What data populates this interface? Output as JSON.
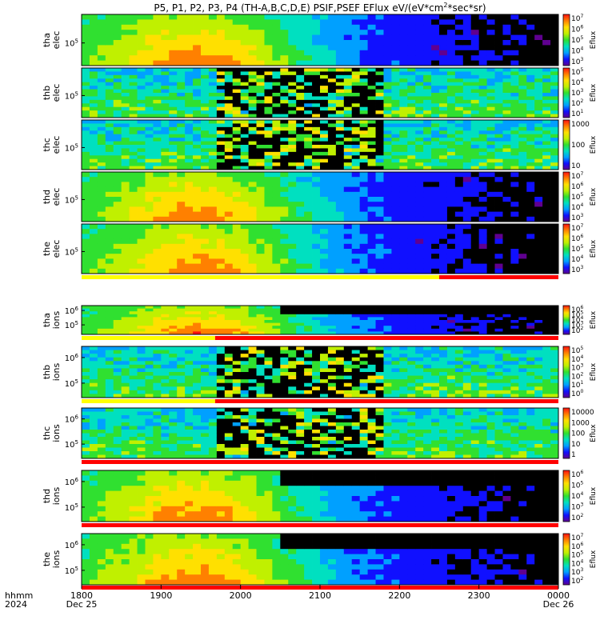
{
  "chart_data": {
    "type": "heatmap",
    "title": "P5, P1, P2, P3, P4 (TH-A,B,C,D,E) PSIF,PSEF EFlux eV/(eV*cm",
    "title_sup": "2",
    "title_tail": "*sec*sr)",
    "x_axis": {
      "corner_labels": [
        "hhmm",
        "2024"
      ],
      "ticks": [
        {
          "label": "1800",
          "date": "Dec 25",
          "hour": 18
        },
        {
          "label": "1900",
          "date": "",
          "hour": 19
        },
        {
          "label": "2000",
          "date": "",
          "hour": 20
        },
        {
          "label": "2100",
          "date": "",
          "hour": 21
        },
        {
          "label": "2200",
          "date": "",
          "hour": 22
        },
        {
          "label": "2300",
          "date": "",
          "hour": 23
        },
        {
          "label": "0000",
          "date": "Dec 26",
          "hour": 24
        }
      ],
      "range_hours": [
        18,
        24
      ]
    },
    "panels": [
      {
        "probe": "tha",
        "species": "elec",
        "ytick": "10",
        "ytick_exp": "5",
        "cbar_label": "Eflux",
        "cbar_ticks": [
          {
            "b": "10",
            "e": "7"
          },
          {
            "b": "10",
            "e": "6"
          },
          {
            "b": "10",
            "e": "5"
          },
          {
            "b": "10",
            "e": "4"
          },
          {
            "b": "10",
            "e": "3"
          }
        ],
        "cbar_range_log": [
          2.6,
          7.2
        ],
        "kind": "smooth"
      },
      {
        "probe": "thb",
        "species": "elec",
        "ytick": "10",
        "ytick_exp": "5",
        "cbar_label": "Eflux",
        "cbar_ticks": [
          {
            "b": "10",
            "e": "5"
          },
          {
            "b": "10",
            "e": "4"
          },
          {
            "b": "10",
            "e": "3"
          },
          {
            "b": "10",
            "e": "2"
          },
          {
            "b": "10",
            "e": "1"
          }
        ],
        "cbar_range_log": [
          0.8,
          5.4
        ],
        "kind": "noisy"
      },
      {
        "probe": "thc",
        "species": "elec",
        "ytick": "10",
        "ytick_exp": "5",
        "cbar_label": "Eflux",
        "cbar_ticks": [
          {
            "b": "1000",
            "e": ""
          },
          {
            "b": "100",
            "e": ""
          },
          {
            "b": "10",
            "e": ""
          }
        ],
        "cbar_range_log": [
          0.8,
          3.4
        ],
        "kind": "noisy"
      },
      {
        "probe": "thd",
        "species": "elec",
        "ytick": "10",
        "ytick_exp": "5",
        "cbar_label": "Eflux",
        "cbar_ticks": [
          {
            "b": "10",
            "e": "7"
          },
          {
            "b": "10",
            "e": "6"
          },
          {
            "b": "10",
            "e": "5"
          },
          {
            "b": "10",
            "e": "4"
          },
          {
            "b": "10",
            "e": "3"
          }
        ],
        "cbar_range_log": [
          2.6,
          7.2
        ],
        "kind": "smooth"
      },
      {
        "probe": "the",
        "species": "elec",
        "ytick": "10",
        "ytick_exp": "5",
        "cbar_label": "Eflux",
        "cbar_ticks": [
          {
            "b": "10",
            "e": "7"
          },
          {
            "b": "10",
            "e": "6"
          },
          {
            "b": "10",
            "e": "5"
          },
          {
            "b": "10",
            "e": "4"
          },
          {
            "b": "10",
            "e": "3"
          }
        ],
        "cbar_range_log": [
          2.6,
          7.2
        ],
        "kind": "smooth"
      },
      {
        "probe": "tha",
        "species": "ions",
        "ytick": "10",
        "ytick_exp": "5",
        "ytick2": "10",
        "ytick2_exp": "6",
        "cbar_label": "Eflux",
        "cbar_ticks": [
          {
            "b": "10",
            "e": "6"
          },
          {
            "b": "10",
            "e": "5"
          },
          {
            "b": "10",
            "e": "4"
          },
          {
            "b": "10",
            "e": "3"
          },
          {
            "b": "10",
            "e": "2"
          }
        ],
        "cbar_range_log": [
          1.6,
          6.4
        ],
        "kind": "smooth"
      },
      {
        "probe": "thb",
        "species": "ions",
        "ytick": "10",
        "ytick_exp": "5",
        "ytick2": "10",
        "ytick2_exp": "6",
        "cbar_label": "Eflux",
        "cbar_ticks": [
          {
            "b": "10",
            "e": "5"
          },
          {
            "b": "10",
            "e": "4"
          },
          {
            "b": "10",
            "e": "3"
          },
          {
            "b": "10",
            "e": "2"
          },
          {
            "b": "10",
            "e": "1"
          },
          {
            "b": "10",
            "e": "0"
          }
        ],
        "cbar_range_log": [
          -0.2,
          5.4
        ],
        "kind": "noisy"
      },
      {
        "probe": "thc",
        "species": "ions",
        "ytick": "10",
        "ytick_exp": "5",
        "ytick2": "10",
        "ytick2_exp": "6",
        "cbar_label": "Eflux",
        "cbar_ticks": [
          {
            "b": "10000",
            "e": ""
          },
          {
            "b": "1000",
            "e": ""
          },
          {
            "b": "100",
            "e": ""
          },
          {
            "b": "10",
            "e": ""
          },
          {
            "b": "1",
            "e": ""
          }
        ],
        "cbar_range_log": [
          -0.2,
          4.4
        ],
        "kind": "noisy"
      },
      {
        "probe": "thd",
        "species": "ions",
        "ytick": "10",
        "ytick_exp": "5",
        "ytick2": "10",
        "ytick2_exp": "6",
        "cbar_label": "Eflux",
        "cbar_ticks": [
          {
            "b": "10",
            "e": "6"
          },
          {
            "b": "10",
            "e": "5"
          },
          {
            "b": "10",
            "e": "4"
          },
          {
            "b": "10",
            "e": "3"
          },
          {
            "b": "10",
            "e": "2"
          }
        ],
        "cbar_range_log": [
          1.6,
          6.4
        ],
        "kind": "smooth"
      },
      {
        "probe": "the",
        "species": "ions",
        "ytick": "10",
        "ytick_exp": "5",
        "ytick2": "10",
        "ytick2_exp": "6",
        "cbar_label": "Eflux",
        "cbar_ticks": [
          {
            "b": "10",
            "e": "7"
          },
          {
            "b": "10",
            "e": "6"
          },
          {
            "b": "10",
            "e": "5"
          },
          {
            "b": "10",
            "e": "4"
          },
          {
            "b": "10",
            "e": "3"
          },
          {
            "b": "10",
            "e": "2"
          }
        ],
        "cbar_range_log": [
          1.6,
          7.4
        ],
        "kind": "smooth"
      }
    ],
    "colormap": [
      "#600090",
      "#1010ff",
      "#00a0ff",
      "#00e0c0",
      "#30e030",
      "#c0f000",
      "#ffe000",
      "#ff8000",
      "#ff1010"
    ],
    "status_bar_colors": {
      "yellow": "#ffff00",
      "red": "#ff0000"
    }
  }
}
